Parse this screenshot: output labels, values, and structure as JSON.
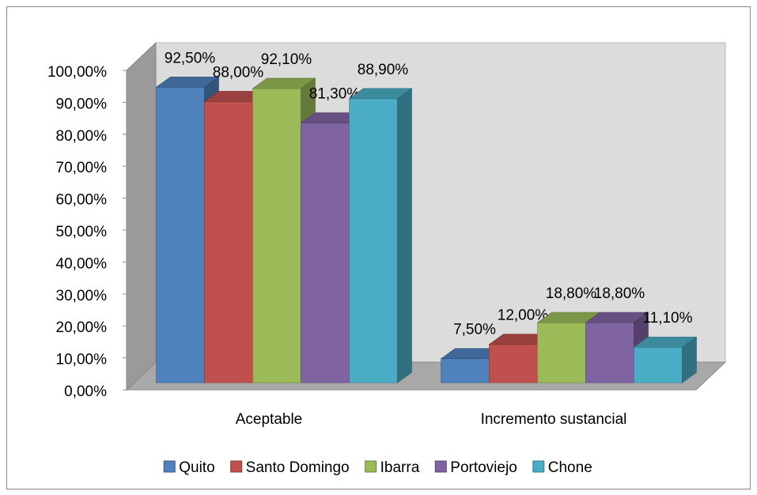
{
  "chart_data": {
    "type": "bar3d",
    "categories": [
      "Aceptable",
      "Incremento sustancial"
    ],
    "series": [
      {
        "name": "Quito",
        "color": "#4f81bd",
        "values": [
          92.5,
          7.5
        ],
        "value_labels": [
          "92,50%",
          "7,50%"
        ]
      },
      {
        "name": "Santo Domingo",
        "color": "#c0504d",
        "values": [
          88,
          12
        ],
        "value_labels": [
          "88,00%",
          "12,00%"
        ]
      },
      {
        "name": "Ibarra",
        "color": "#9bbb59",
        "values": [
          92.1,
          18.8
        ],
        "value_labels": [
          "92,10%",
          "18,80%"
        ]
      },
      {
        "name": "Portoviejo",
        "color": "#8064a2",
        "values": [
          81.3,
          18.8
        ],
        "value_labels": [
          "81,30%",
          "18,80%"
        ]
      },
      {
        "name": "Chone",
        "color": "#4bacc6",
        "values": [
          88.9,
          11.1
        ],
        "value_labels": [
          "88,90%",
          "11,10%"
        ]
      }
    ],
    "ylim": [
      0,
      100
    ],
    "yticks": [
      {
        "value": 0,
        "label": "0,00%"
      },
      {
        "value": 10,
        "label": "10,00%"
      },
      {
        "value": 20,
        "label": "20,00%"
      },
      {
        "value": 30,
        "label": "30,00%"
      },
      {
        "value": 40,
        "label": "40,00%"
      },
      {
        "value": 50,
        "label": "50,00%"
      },
      {
        "value": 60,
        "label": "60,00%"
      },
      {
        "value": 70,
        "label": "70,00%"
      },
      {
        "value": 80,
        "label": "80,00%"
      },
      {
        "value": 90,
        "label": "90,00%"
      },
      {
        "value": 100,
        "label": "100,00%"
      }
    ],
    "grid": false,
    "legend": "bottom"
  }
}
